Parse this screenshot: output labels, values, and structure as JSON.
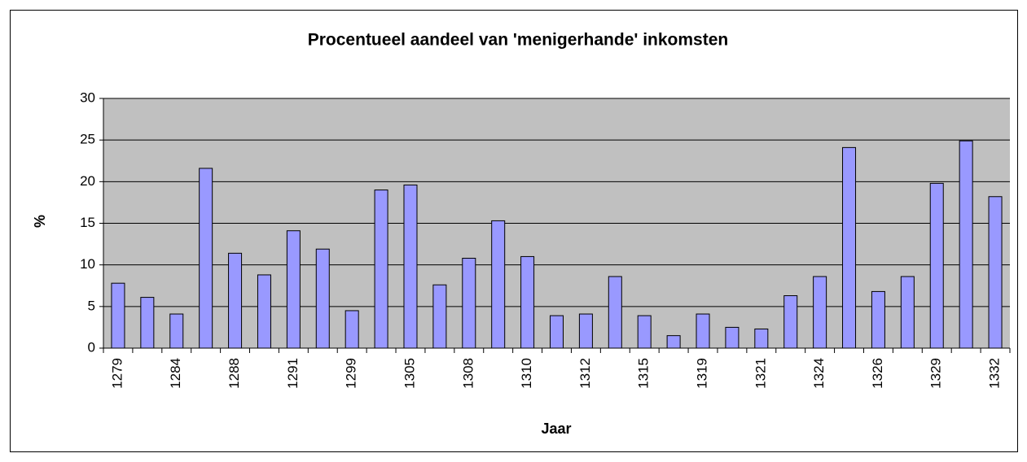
{
  "chart_data": {
    "type": "bar",
    "title": "Procentueel aandeel van 'menigerhande' inkomsten",
    "x_label": "Jaar",
    "y_label": "%",
    "categories": [
      "1279",
      null,
      "1284",
      null,
      "1288",
      null,
      "1291",
      null,
      "1299",
      null,
      "1305",
      null,
      "1308",
      null,
      "1310",
      null,
      "1312",
      null,
      "1315",
      null,
      "1319",
      null,
      "1321",
      null,
      "1324",
      null,
      "1326",
      null,
      "1329",
      null,
      "1332"
    ],
    "values": [
      7.8,
      6.1,
      4.1,
      21.6,
      11.4,
      8.8,
      14.1,
      11.9,
      4.5,
      19,
      19.6,
      7.6,
      10.8,
      15.3,
      11,
      3.9,
      4.1,
      8.6,
      3.9,
      1.5,
      4.1,
      2.5,
      2.3,
      6.3,
      8.6,
      24.1,
      6.8,
      8.6,
      19.8,
      24.9,
      18.2
    ],
    "color": "#9999ff",
    "ylim": [
      0,
      30
    ],
    "yticks": [
      0,
      5,
      10,
      15,
      20,
      25,
      30
    ],
    "grid": true
  }
}
